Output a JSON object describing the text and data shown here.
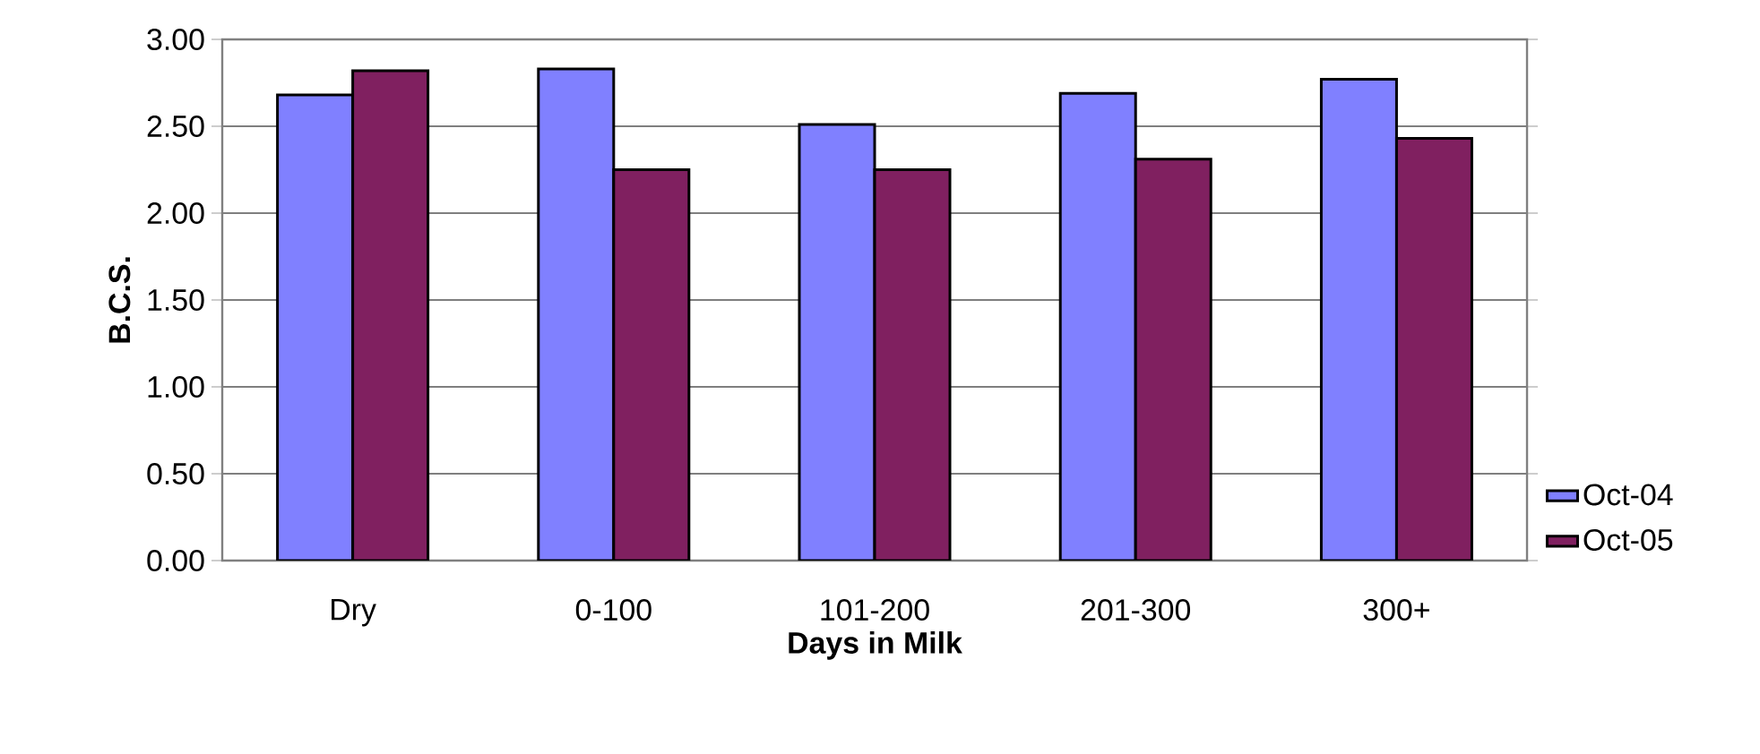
{
  "chart_data": {
    "type": "bar",
    "xlabel": "Days in Milk",
    "ylabel": "B.C.S.",
    "categories": [
      "Dry",
      "0-100",
      "101-200",
      "201-300",
      "300+"
    ],
    "series": [
      {
        "name": "Oct-04",
        "color": "#8080ff",
        "values": [
          2.68,
          2.83,
          2.51,
          2.69,
          2.77
        ]
      },
      {
        "name": "Oct-05",
        "color": "#802060",
        "values": [
          2.82,
          2.25,
          2.25,
          2.31,
          2.43
        ]
      }
    ],
    "ylim": [
      0,
      3
    ],
    "yticks": [
      {
        "value": 0,
        "label": "0.00"
      },
      {
        "value": 0.5,
        "label": "0.50"
      },
      {
        "value": 1,
        "label": "1.00"
      },
      {
        "value": 1.5,
        "label": "1.50"
      },
      {
        "value": 2,
        "label": "2.00"
      },
      {
        "value": 2.5,
        "label": "2.50"
      },
      {
        "value": 3,
        "label": "3.00"
      }
    ],
    "grid": "y",
    "legend": "right"
  }
}
